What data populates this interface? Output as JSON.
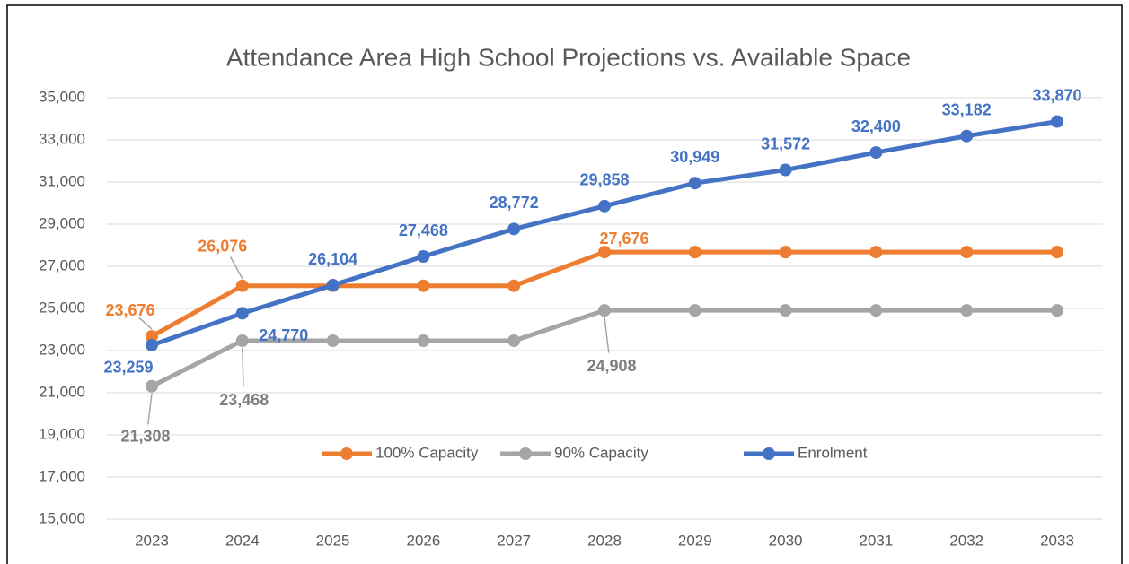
{
  "chart_data": {
    "type": "line",
    "title": "Attendance Area High School Projections vs. Available Space",
    "categories": [
      "2023",
      "2024",
      "2025",
      "2026",
      "2027",
      "2028",
      "2029",
      "2030",
      "2031",
      "2032",
      "2033"
    ],
    "series": [
      {
        "name": "100% Capacity",
        "color": "#ED7D31",
        "values": [
          23676,
          26076,
          26076,
          26076,
          26076,
          27676,
          27676,
          27676,
          27676,
          27676,
          27676
        ],
        "value_labels": [
          "23,676",
          "26,076",
          null,
          null,
          null,
          "27,676",
          null,
          null,
          null,
          null,
          null
        ]
      },
      {
        "name": "90% Capacity",
        "color": "#A5A5A5",
        "values": [
          21308,
          23468,
          23468,
          23468,
          23468,
          24908,
          24908,
          24908,
          24908,
          24908,
          24908
        ],
        "value_labels": [
          "21,308",
          "23,468",
          null,
          null,
          null,
          "24,908",
          null,
          null,
          null,
          null,
          null
        ]
      },
      {
        "name": "Enrolment",
        "color": "#4472C4",
        "values": [
          23259,
          24770,
          26104,
          27468,
          28772,
          29858,
          30949,
          31572,
          32400,
          33182,
          33870
        ],
        "value_labels": [
          "23,259",
          "24,770",
          "26,104",
          "27,468",
          "28,772",
          "29,858",
          "30,949",
          "31,572",
          "32,400",
          "33,182",
          "33,870"
        ]
      }
    ],
    "ylim": [
      15000,
      35000
    ],
    "yticks": [
      {
        "value": 15000,
        "label": "15,000"
      },
      {
        "value": 17000,
        "label": "17,000"
      },
      {
        "value": 19000,
        "label": "19,000"
      },
      {
        "value": 21000,
        "label": "21,000"
      },
      {
        "value": 23000,
        "label": "23,000"
      },
      {
        "value": 25000,
        "label": "25,000"
      },
      {
        "value": 27000,
        "label": "27,000"
      },
      {
        "value": 29000,
        "label": "29,000"
      },
      {
        "value": 31000,
        "label": "31,000"
      },
      {
        "value": 33000,
        "label": "33,000"
      },
      {
        "value": 35000,
        "label": "35,000"
      }
    ],
    "grid": true,
    "legend": "bottom"
  }
}
